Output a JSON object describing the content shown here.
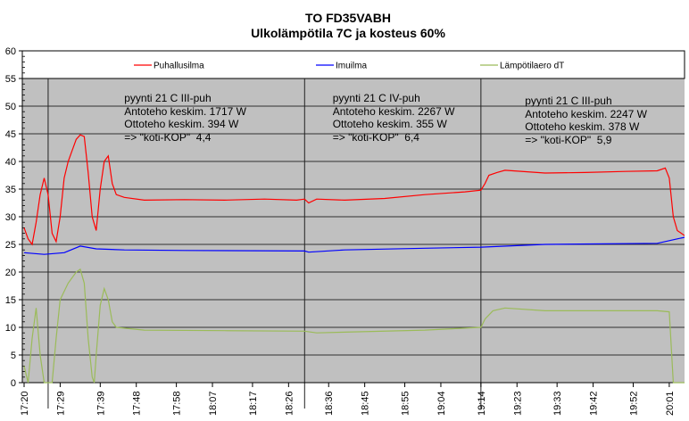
{
  "chart_data": {
    "type": "line",
    "title": "TO FD35VABH",
    "subtitle": "Ulkolämpötila 7C ja kosteus 60%",
    "xlabel": "",
    "ylabel": "",
    "ylim": [
      0,
      60
    ],
    "yticks": [
      0,
      5,
      10,
      15,
      20,
      25,
      30,
      35,
      40,
      45,
      50,
      55,
      60
    ],
    "xlim": [
      "17:20",
      "20:05"
    ],
    "xticks": [
      "17:20",
      "17:29",
      "17:39",
      "17:48",
      "17:58",
      "18:07",
      "18:17",
      "18:26",
      "18:36",
      "18:45",
      "18:55",
      "19:04",
      "19:14",
      "19:23",
      "19:33",
      "19:42",
      "19:52",
      "20:01"
    ],
    "grid": "horizontal",
    "legend_placement": "top",
    "plot_background": "#c0c0c0",
    "phase_dividers": [
      "17:26",
      "18:30",
      "19:14"
    ],
    "series": [
      {
        "name": "Puhallusilma",
        "color": "#ff0000",
        "points": [
          [
            "17:20",
            28
          ],
          [
            "17:21",
            26
          ],
          [
            "17:22",
            25
          ],
          [
            "17:23",
            29
          ],
          [
            "17:24",
            34
          ],
          [
            "17:25",
            37
          ],
          [
            "17:26",
            34
          ],
          [
            "17:27",
            27
          ],
          [
            "17:28",
            25.5
          ],
          [
            "17:29",
            30
          ],
          [
            "17:30",
            37
          ],
          [
            "17:31",
            40
          ],
          [
            "17:32",
            42
          ],
          [
            "17:33",
            44
          ],
          [
            "17:34",
            44.8
          ],
          [
            "17:35",
            44.5
          ],
          [
            "17:36",
            38
          ],
          [
            "17:37",
            30
          ],
          [
            "17:38",
            27.5
          ],
          [
            "17:39",
            35
          ],
          [
            "17:40",
            40
          ],
          [
            "17:41",
            41
          ],
          [
            "17:42",
            36
          ],
          [
            "17:43",
            34
          ],
          [
            "17:45",
            33.5
          ],
          [
            "17:50",
            33
          ],
          [
            "18:00",
            33.1
          ],
          [
            "18:10",
            33
          ],
          [
            "18:20",
            33.2
          ],
          [
            "18:28",
            33
          ],
          [
            "18:30",
            33.2
          ],
          [
            "18:31",
            32.5
          ],
          [
            "18:33",
            33.2
          ],
          [
            "18:40",
            33
          ],
          [
            "18:50",
            33.3
          ],
          [
            "19:00",
            34
          ],
          [
            "19:10",
            34.5
          ],
          [
            "19:14",
            34.8
          ],
          [
            "19:15",
            36
          ],
          [
            "19:16",
            37.5
          ],
          [
            "19:18",
            38
          ],
          [
            "19:20",
            38.4
          ],
          [
            "19:30",
            37.9
          ],
          [
            "19:40",
            38
          ],
          [
            "19:50",
            38.2
          ],
          [
            "19:58",
            38.3
          ],
          [
            "20:00",
            38.8
          ],
          [
            "20:01",
            37
          ],
          [
            "20:02",
            30
          ],
          [
            "20:03",
            27.5
          ],
          [
            "20:05",
            26.5
          ]
        ]
      },
      {
        "name": "Imuilma",
        "color": "#0000ff",
        "points": [
          [
            "17:20",
            23.5
          ],
          [
            "17:25",
            23.2
          ],
          [
            "17:30",
            23.5
          ],
          [
            "17:34",
            24.7
          ],
          [
            "17:38",
            24.2
          ],
          [
            "17:45",
            24
          ],
          [
            "18:00",
            23.9
          ],
          [
            "18:30",
            23.8
          ],
          [
            "18:31",
            23.6
          ],
          [
            "18:40",
            24
          ],
          [
            "19:00",
            24.3
          ],
          [
            "19:14",
            24.5
          ],
          [
            "19:30",
            25
          ],
          [
            "19:58",
            25.2
          ],
          [
            "20:03",
            26
          ],
          [
            "20:05",
            26.3
          ]
        ]
      },
      {
        "name": "Lämpötilaero dT",
        "color": "#9bbb59",
        "points": [
          [
            "17:20",
            3
          ],
          [
            "17:21",
            0
          ],
          [
            "17:22",
            8
          ],
          [
            "17:23",
            13.5
          ],
          [
            "17:24",
            5
          ],
          [
            "17:25",
            0
          ],
          [
            "17:27",
            0
          ],
          [
            "17:28",
            8
          ],
          [
            "17:29",
            15
          ],
          [
            "17:31",
            18
          ],
          [
            "17:33",
            20
          ],
          [
            "17:34",
            20.5
          ],
          [
            "17:35",
            18
          ],
          [
            "17:36",
            8
          ],
          [
            "17:37",
            1
          ],
          [
            "17:37.5",
            0
          ],
          [
            "17:38",
            5
          ],
          [
            "17:39",
            14
          ],
          [
            "17:40",
            17
          ],
          [
            "17:41",
            15
          ],
          [
            "17:42",
            11
          ],
          [
            "17:43",
            10
          ],
          [
            "17:50",
            9.5
          ],
          [
            "18:10",
            9.4
          ],
          [
            "18:30",
            9.3
          ],
          [
            "18:33",
            9
          ],
          [
            "19:00",
            9.5
          ],
          [
            "19:14",
            10
          ],
          [
            "19:15",
            11.5
          ],
          [
            "19:17",
            13
          ],
          [
            "19:20",
            13.5
          ],
          [
            "19:30",
            13
          ],
          [
            "19:58",
            13
          ],
          [
            "20:01",
            12.8
          ],
          [
            "20:02",
            0
          ],
          [
            "20:05",
            0
          ]
        ]
      }
    ],
    "annotations": [
      {
        "time": "17:45",
        "lines": [
          "pyynti 21 C III-puh",
          "Antoteho keskim. 1717 W",
          "Ottoteho keskim. 394 W",
          "=> \"koti-KOP\"  4,4"
        ]
      },
      {
        "time": "18:37",
        "lines": [
          "pyynti 21 C IV-puh",
          "Antoteho keskim. 2267 W",
          "Ottoteho keskim. 355 W",
          "=> \"koti-KOP\"  6,4"
        ]
      },
      {
        "time": "19:25",
        "lines": [
          "pyynti 21 C III-puh",
          "Antoteho keskim. 2247 W",
          "Ottoteho keskim. 378 W",
          "=> \"koti-KOP\"  5,9"
        ]
      }
    ]
  }
}
